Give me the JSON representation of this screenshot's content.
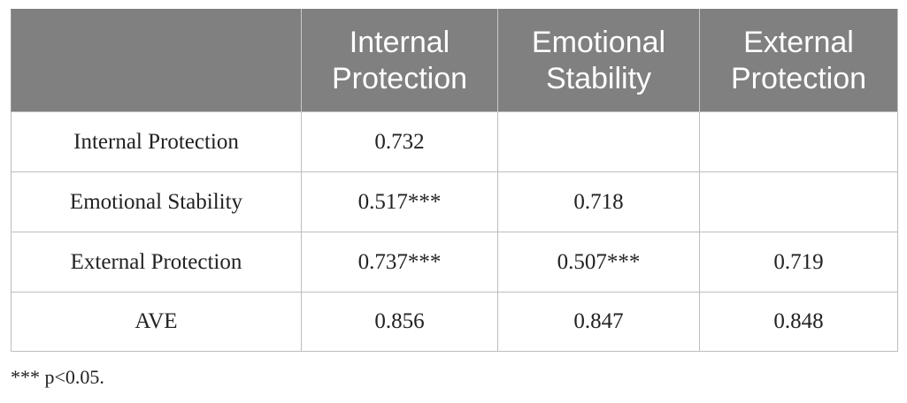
{
  "table": {
    "headers": [
      {
        "lines": []
      },
      {
        "lines": [
          "Internal",
          "Protection"
        ]
      },
      {
        "lines": [
          "Emotional",
          "Stability"
        ]
      },
      {
        "lines": [
          "External",
          "Protection"
        ]
      }
    ],
    "rows": [
      {
        "label": "Internal Protection",
        "cells": [
          "0.732",
          "",
          ""
        ]
      },
      {
        "label": "Emotional Stability",
        "cells": [
          "0.517***",
          "0.718",
          ""
        ]
      },
      {
        "label": "External Protection",
        "cells": [
          "0.737***",
          "0.507***",
          "0.719"
        ]
      },
      {
        "label": "AVE",
        "cells": [
          "0.856",
          "0.847",
          "0.848"
        ]
      }
    ]
  },
  "footnote": {
    "marker": "***",
    "text": " p<0.05."
  },
  "colors": {
    "header_background": "#808080",
    "header_text": "#ffffff",
    "grid_lines": "#bdbdbd"
  }
}
